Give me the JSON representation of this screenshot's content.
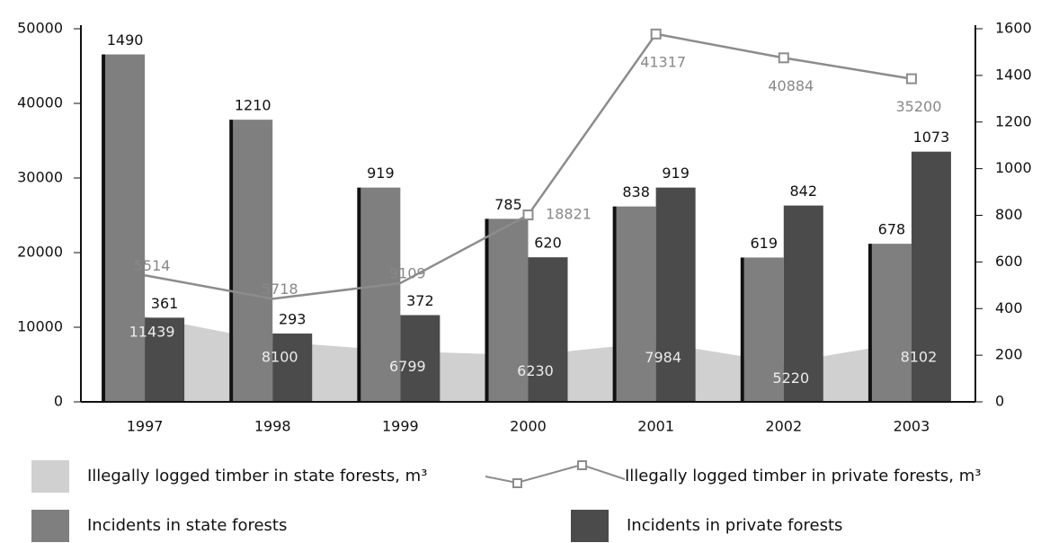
{
  "chart_data": {
    "type": "combo",
    "categories": [
      "1997",
      "1998",
      "1999",
      "2000",
      "2001",
      "2002",
      "2003"
    ],
    "series": [
      {
        "name": "Illegally logged timber in state forests, m³",
        "type": "area",
        "axis": "y",
        "color": "#d0d0d0",
        "values": [
          11439,
          8100,
          6799,
          6230,
          7984,
          5220,
          8102
        ]
      },
      {
        "name": "Illegally logged timber in private forests, m³",
        "type": "line",
        "axis": "y",
        "stacked": true,
        "color": "#8c8c8c",
        "values": [
          5514,
          5718,
          9109,
          18821,
          41317,
          40884,
          35200
        ]
      },
      {
        "name": "Incidents in state forests",
        "type": "bar",
        "axis": "y2",
        "color": "#7f7f7f",
        "values": [
          1490,
          1210,
          919,
          785,
          838,
          619,
          678
        ]
      },
      {
        "name": "Incidents in private forests",
        "type": "bar",
        "axis": "y2",
        "color": "#4b4b4b",
        "values": [
          361,
          293,
          372,
          620,
          919,
          842,
          1073
        ]
      }
    ],
    "ylim": [
      0,
      50000
    ],
    "yticks": [
      0,
      10000,
      20000,
      30000,
      40000,
      50000
    ],
    "y2lim": [
      0,
      1600
    ],
    "y2ticks": [
      0,
      200,
      400,
      600,
      800,
      1000,
      1200,
      1400,
      1600
    ]
  }
}
